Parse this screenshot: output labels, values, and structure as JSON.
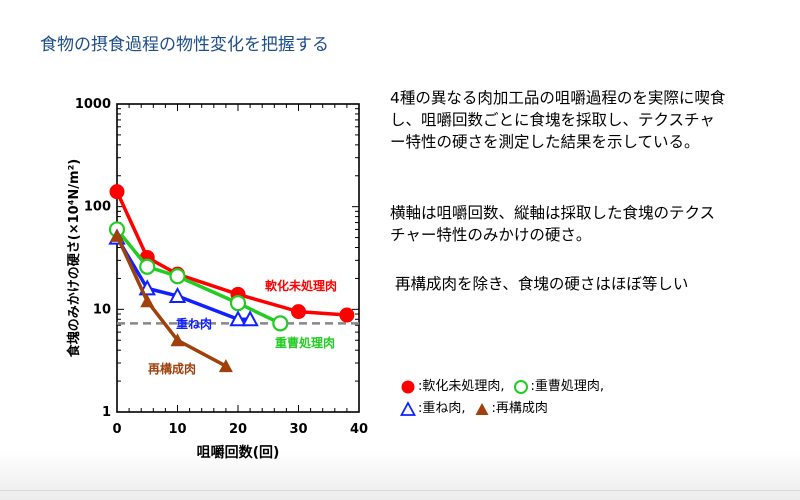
{
  "slide": {
    "title": "食物の摂食過程の物性変化を把握する"
  },
  "description": {
    "p1": "4種の異なる肉加工品の咀嚼過程のを実際に喫食し、咀嚼回数ごとに食塊を採取し、テクスチャー特性の硬さを測定した結果を示している。",
    "p2": "横軸は咀嚼回数、縦軸は採取した食塊のテクスチャー特性のみかけの硬さ。",
    "p3": "再構成肉を除き、食塊の硬さはほぼ等しい"
  },
  "legend": {
    "item1": ":軟化未処理肉,",
    "item2": ":重曹処理肉,",
    "item3": ":重ね肉,",
    "item4": ":再構成肉"
  },
  "chart_data": {
    "type": "line",
    "xlabel": "咀嚼回数(回)",
    "ylabel": "食塊のみかけの硬さ(×10⁴N/m²)",
    "xlim": [
      0,
      40
    ],
    "ylim": [
      1,
      1000
    ],
    "yscale": "log",
    "x_ticks": [
      "0",
      "10",
      "20",
      "30",
      "40"
    ],
    "y_ticks": [
      "1",
      "10",
      "100",
      "1000"
    ],
    "series": [
      {
        "name": "軟化未処理肉",
        "color": "#ff0000",
        "marker": "filled-circle",
        "label_on_chart": "軟化未処理肉",
        "x": [
          0,
          5,
          10,
          20,
          30,
          38
        ],
        "y": [
          140,
          32,
          22,
          14,
          9.5,
          8.8
        ]
      },
      {
        "name": "重曹処理肉",
        "color": "#22cc22",
        "marker": "open-circle",
        "label_on_chart": "重曹処理肉",
        "x": [
          0,
          5,
          10,
          20,
          27
        ],
        "y": [
          60,
          26,
          21,
          11.5,
          7.3
        ]
      },
      {
        "name": "重ね肉",
        "color": "#1020ff",
        "marker": "open-triangle",
        "label_on_chart": "重ね肉",
        "x": [
          0,
          5,
          10,
          20,
          22
        ],
        "y": [
          50,
          16,
          13.5,
          8,
          8
        ]
      },
      {
        "name": "再構成肉",
        "color": "#a0400a",
        "marker": "filled-triangle",
        "label_on_chart": "再構成肉",
        "x": [
          0,
          5,
          10,
          18
        ],
        "y": [
          52,
          12,
          5,
          2.8
        ]
      }
    ],
    "reference_line": {
      "y": 7.3,
      "style": "dashed",
      "color": "#888888"
    },
    "grid": false
  }
}
